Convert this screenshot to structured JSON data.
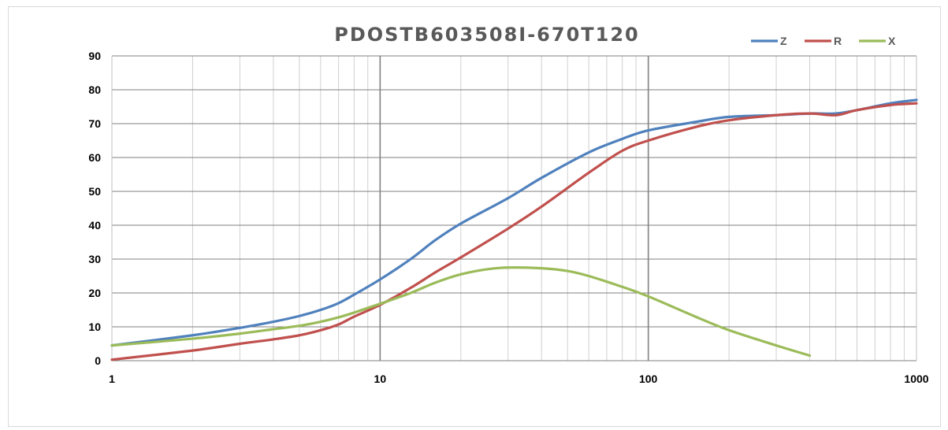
{
  "chart_data": {
    "type": "line",
    "title": "PDOSTB603508I-670T120",
    "xlabel": "",
    "ylabel": "",
    "x_scale": "log",
    "xlim": [
      1,
      1000
    ],
    "ylim": [
      0,
      90
    ],
    "x_ticks": [
      "1",
      "10",
      "100",
      "1000"
    ],
    "y_ticks": [
      "0",
      "10",
      "20",
      "30",
      "40",
      "50",
      "60",
      "70",
      "80",
      "90"
    ],
    "grid": true,
    "legend_position": "top-right",
    "series": [
      {
        "name": "Z",
        "color": "#4f81bd",
        "x": [
          1,
          2,
          3,
          4,
          5,
          6,
          7,
          8,
          10,
          13,
          16,
          20,
          30,
          40,
          60,
          80,
          100,
          150,
          200,
          300,
          400,
          500,
          600,
          800,
          1000
        ],
        "y": [
          4.5,
          7.5,
          9.7,
          11.5,
          13.2,
          15.0,
          17.0,
          19.5,
          24.0,
          30.0,
          35.5,
          40.5,
          48.0,
          54.0,
          61.5,
          65.5,
          68.0,
          70.5,
          72.0,
          72.5,
          73.0,
          73.0,
          74.0,
          76.0,
          77.0
        ]
      },
      {
        "name": "R",
        "color": "#c0504d",
        "x": [
          1,
          2,
          3,
          4,
          5,
          6,
          7,
          8,
          10,
          13,
          16,
          20,
          30,
          40,
          60,
          80,
          100,
          150,
          200,
          300,
          400,
          500,
          600,
          800,
          1000
        ],
        "y": [
          0.3,
          3.0,
          5.0,
          6.3,
          7.5,
          9.0,
          10.7,
          13.0,
          16.5,
          21.5,
          26.0,
          30.5,
          39.0,
          45.5,
          55.5,
          62.0,
          65.0,
          69.0,
          71.0,
          72.5,
          73.0,
          72.5,
          74.0,
          75.5,
          76.0
        ]
      },
      {
        "name": "X",
        "color": "#9bbb59",
        "x": [
          1,
          2,
          3,
          4,
          5,
          6,
          7,
          8,
          10,
          13,
          16,
          20,
          25,
          30,
          40,
          50,
          60,
          80,
          100,
          150,
          200,
          300,
          400
        ],
        "y": [
          4.5,
          6.5,
          8.0,
          9.3,
          10.3,
          11.5,
          12.8,
          14.2,
          16.8,
          20.0,
          23.0,
          25.5,
          27.0,
          27.5,
          27.3,
          26.5,
          25.0,
          21.8,
          19.0,
          13.0,
          9.0,
          4.5,
          1.5
        ]
      }
    ]
  }
}
